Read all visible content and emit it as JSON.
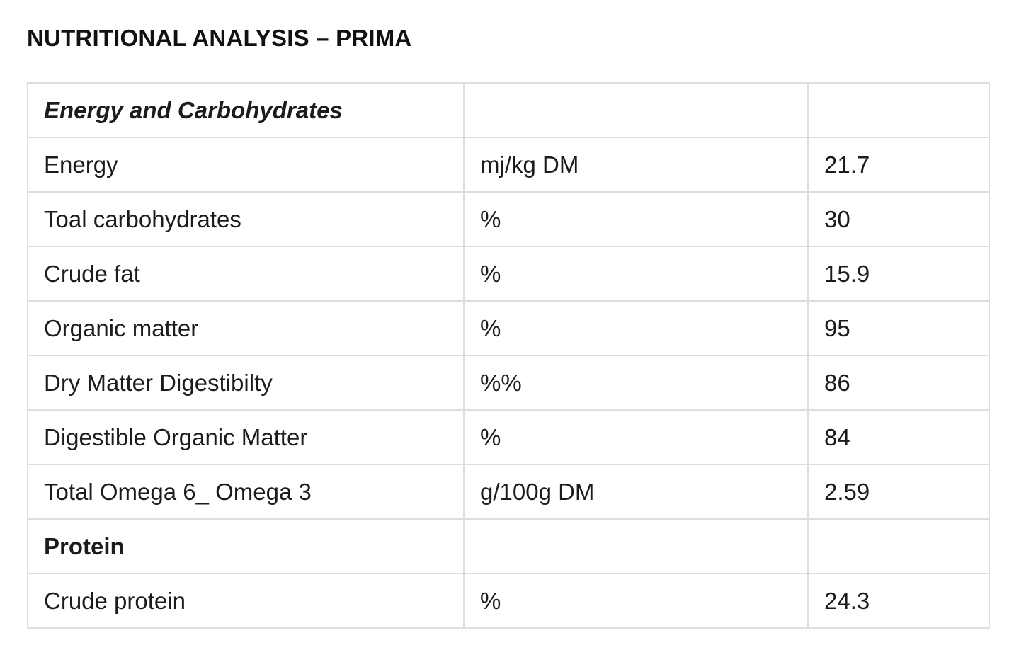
{
  "title": "NUTRITIONAL ANALYSIS – PRIMA",
  "table": {
    "sections": [
      {
        "heading": "Energy and Carbohydrates",
        "rows": [
          {
            "name": "Energy",
            "unit": "mj/kg DM",
            "value": "21.7"
          },
          {
            "name": "Toal carbohydrates",
            "unit": "%",
            "value": "30"
          },
          {
            "name": "Crude fat",
            "unit": "%",
            "value": "15.9"
          },
          {
            "name": "Organic matter",
            "unit": "%",
            "value": "95"
          },
          {
            "name": "Dry Matter Digestibilty",
            "unit": "%%",
            "value": "86"
          },
          {
            "name": "Digestible Organic Matter",
            "unit": "%",
            "value": "84"
          },
          {
            "name": "Total Omega 6_ Omega 3",
            "unit": "g/100g DM",
            "value": "2.59"
          }
        ]
      },
      {
        "heading": "Protein",
        "rows": [
          {
            "name": "Crude protein",
            "unit": "%",
            "value": "24.3"
          }
        ]
      }
    ]
  }
}
